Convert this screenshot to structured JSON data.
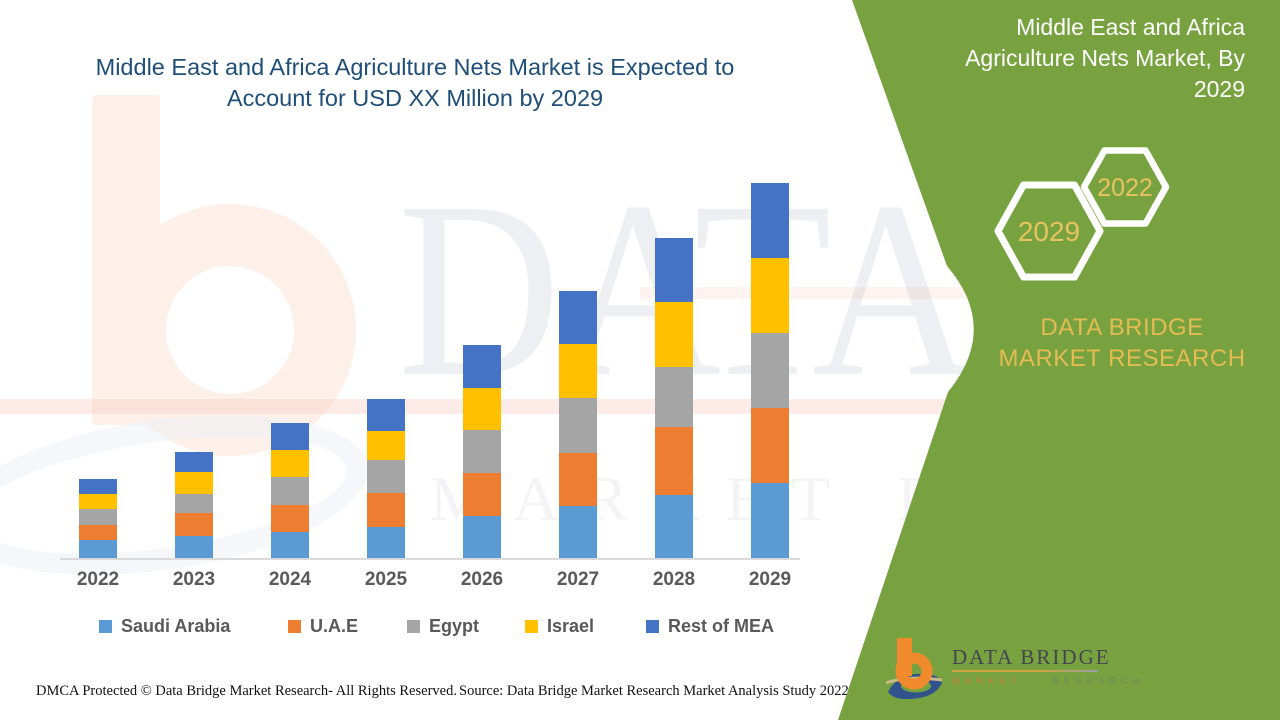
{
  "header": {
    "title_line1": "Middle East and Africa Agriculture Nets Market is Expected to",
    "title_line2": "Account for USD XX Million by 2029"
  },
  "side_panel": {
    "title": "Middle East and Africa Agriculture Nets Market, By 2029",
    "hexagon_front": "2029",
    "hexagon_back": "2022",
    "brand_text": "DATA BRIDGE MARKET RESEARCH",
    "panel_color": "#78A23F",
    "gold_color": "#E8C45E"
  },
  "watermark": {
    "big_text": "DATA BRIDGE",
    "sub_text": "MARKET RESEARCH"
  },
  "chart_data": {
    "type": "bar",
    "stacked": true,
    "title": "Middle East and Africa Agriculture Nets Market is Expected to Account for USD XX Million by 2029",
    "xlabel": "",
    "ylabel": "",
    "y_axis_visible": false,
    "values_unit": "relative height units (actual USD Million values masked as XX in source image)",
    "categories": [
      "2022",
      "2023",
      "2024",
      "2025",
      "2026",
      "2027",
      "2028",
      "2029"
    ],
    "series": [
      {
        "name": "Saudi Arabia",
        "color": "#5B9BD5",
        "values": [
          18,
          22,
          26,
          31,
          42,
          52,
          63,
          75
        ]
      },
      {
        "name": "U.A.E",
        "color": "#ED7D31",
        "values": [
          15,
          23,
          27,
          34,
          43,
          53,
          68,
          75
        ]
      },
      {
        "name": "Egypt",
        "color": "#A5A5A5",
        "values": [
          16,
          19,
          28,
          33,
          43,
          55,
          60,
          75
        ]
      },
      {
        "name": "Israel",
        "color": "#FFC000",
        "values": [
          15,
          22,
          27,
          29,
          42,
          54,
          65,
          75
        ]
      },
      {
        "name": "Rest of MEA",
        "color": "#4472C4",
        "values": [
          15,
          20,
          27,
          32,
          43,
          53,
          64,
          75
        ]
      }
    ],
    "stack_order": "bottom to top: Saudi Arabia, U.A.E, Egypt, Israel, Rest of MEA",
    "legend_position": "bottom",
    "ylim": [
      0,
      400
    ]
  },
  "logo": {
    "wordmark": "DATA BRIDGE",
    "tagline_word1": "MARKET",
    "tagline_word2": "RESEARCH"
  },
  "footer": {
    "left": "DMCA Protected © Data Bridge Market Research- All Rights Reserved.",
    "right": "Source: Data Bridge Market Research Market Analysis Study 2022"
  }
}
